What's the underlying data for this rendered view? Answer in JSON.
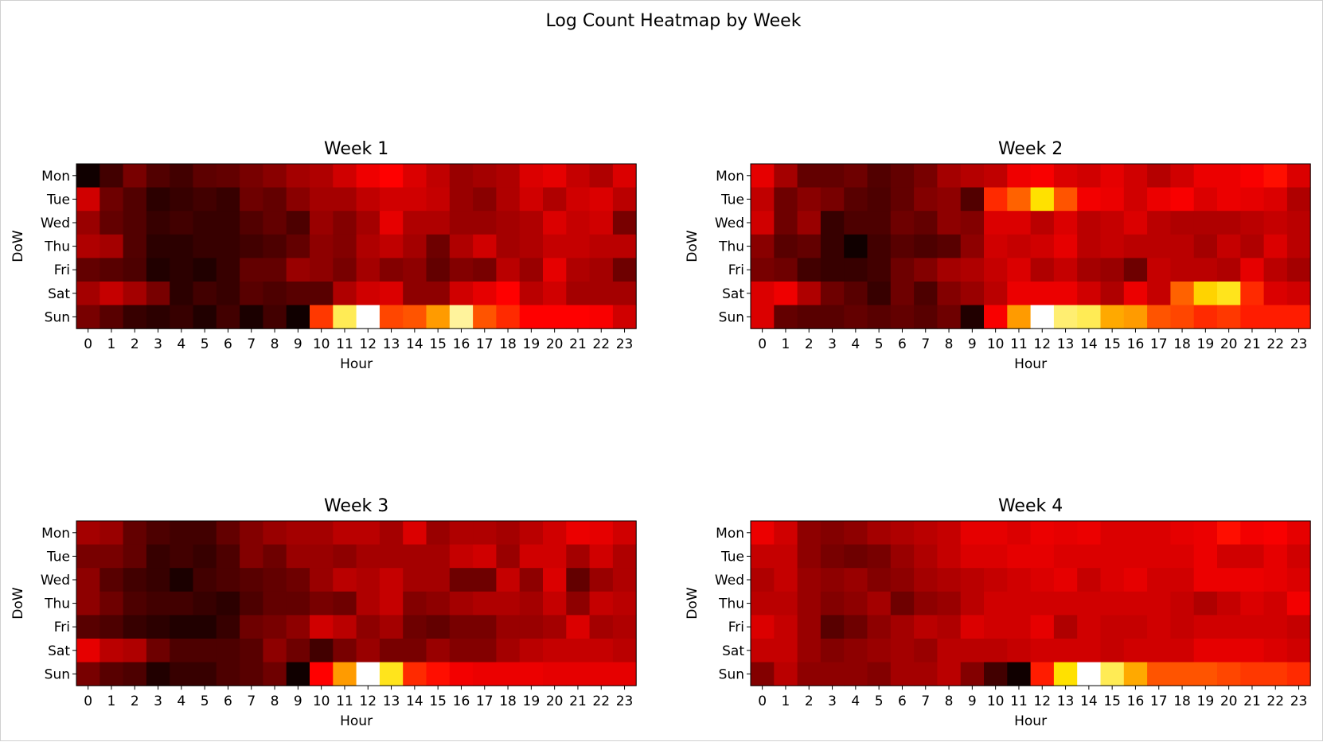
{
  "chart_data": {
    "type": "heatmap",
    "title": "Log Count Heatmap by Week",
    "colormap": "hot",
    "colormap_stops": [
      "#000000",
      "#e60000",
      "#ff0000",
      "#ffe100",
      "#ffffff"
    ],
    "x_ticks": [
      "0",
      "1",
      "2",
      "3",
      "4",
      "5",
      "6",
      "7",
      "8",
      "9",
      "10",
      "11",
      "12",
      "13",
      "14",
      "15",
      "16",
      "17",
      "18",
      "19",
      "20",
      "21",
      "22",
      "23"
    ],
    "y_ticks": [
      "Mon",
      "Tue",
      "Wed",
      "Thu",
      "Fri",
      "Sat",
      "Sun"
    ],
    "xlabel": "Hour",
    "ylabel": "DoW",
    "value_range": [
      0,
      1
    ],
    "panels": [
      {
        "title": "Week 1",
        "values": [
          [
            0.03,
            0.12,
            0.22,
            0.15,
            0.12,
            0.17,
            0.18,
            0.22,
            0.25,
            0.3,
            0.32,
            0.38,
            0.45,
            0.5,
            0.4,
            0.35,
            0.28,
            0.3,
            0.32,
            0.4,
            0.42,
            0.36,
            0.32,
            0.4
          ],
          [
            0.38,
            0.2,
            0.15,
            0.08,
            0.1,
            0.12,
            0.1,
            0.2,
            0.18,
            0.25,
            0.3,
            0.3,
            0.35,
            0.38,
            0.38,
            0.36,
            0.28,
            0.25,
            0.32,
            0.38,
            0.32,
            0.38,
            0.4,
            0.34
          ],
          [
            0.28,
            0.18,
            0.15,
            0.1,
            0.12,
            0.1,
            0.1,
            0.15,
            0.18,
            0.14,
            0.28,
            0.24,
            0.3,
            0.42,
            0.32,
            0.32,
            0.28,
            0.28,
            0.3,
            0.32,
            0.4,
            0.36,
            0.38,
            0.22
          ],
          [
            0.32,
            0.3,
            0.15,
            0.08,
            0.08,
            0.1,
            0.1,
            0.12,
            0.14,
            0.18,
            0.26,
            0.24,
            0.32,
            0.35,
            0.3,
            0.2,
            0.32,
            0.38,
            0.3,
            0.32,
            0.36,
            0.36,
            0.34,
            0.34
          ],
          [
            0.18,
            0.16,
            0.14,
            0.06,
            0.08,
            0.06,
            0.1,
            0.18,
            0.18,
            0.28,
            0.26,
            0.22,
            0.3,
            0.24,
            0.26,
            0.18,
            0.24,
            0.22,
            0.34,
            0.28,
            0.42,
            0.32,
            0.3,
            0.2
          ],
          [
            0.3,
            0.36,
            0.3,
            0.22,
            0.08,
            0.12,
            0.1,
            0.16,
            0.14,
            0.16,
            0.16,
            0.32,
            0.38,
            0.4,
            0.26,
            0.26,
            0.38,
            0.42,
            0.5,
            0.34,
            0.38,
            0.3,
            0.3,
            0.3
          ],
          [
            0.22,
            0.16,
            0.1,
            0.08,
            0.1,
            0.06,
            0.12,
            0.05,
            0.12,
            0.03,
            0.58,
            0.88,
            1.0,
            0.6,
            0.62,
            0.72,
            0.93,
            0.62,
            0.56,
            0.5,
            0.5,
            0.5,
            0.48,
            0.38
          ]
        ]
      },
      {
        "title": "Week 2",
        "values": [
          [
            0.42,
            0.3,
            0.18,
            0.18,
            0.2,
            0.15,
            0.18,
            0.22,
            0.3,
            0.33,
            0.35,
            0.45,
            0.48,
            0.4,
            0.38,
            0.42,
            0.38,
            0.33,
            0.38,
            0.44,
            0.44,
            0.48,
            0.52,
            0.4
          ],
          [
            0.35,
            0.2,
            0.25,
            0.22,
            0.16,
            0.14,
            0.18,
            0.24,
            0.26,
            0.15,
            0.56,
            0.64,
            0.82,
            0.62,
            0.46,
            0.44,
            0.38,
            0.44,
            0.48,
            0.4,
            0.44,
            0.42,
            0.4,
            0.32
          ],
          [
            0.38,
            0.2,
            0.28,
            0.1,
            0.14,
            0.14,
            0.2,
            0.18,
            0.26,
            0.24,
            0.4,
            0.4,
            0.34,
            0.4,
            0.34,
            0.36,
            0.4,
            0.34,
            0.32,
            0.32,
            0.32,
            0.34,
            0.36,
            0.34
          ],
          [
            0.25,
            0.16,
            0.18,
            0.1,
            0.03,
            0.12,
            0.16,
            0.14,
            0.16,
            0.26,
            0.38,
            0.36,
            0.38,
            0.42,
            0.34,
            0.36,
            0.34,
            0.34,
            0.34,
            0.3,
            0.36,
            0.32,
            0.4,
            0.34
          ],
          [
            0.22,
            0.2,
            0.12,
            0.1,
            0.1,
            0.12,
            0.2,
            0.24,
            0.3,
            0.32,
            0.36,
            0.4,
            0.32,
            0.36,
            0.3,
            0.28,
            0.2,
            0.36,
            0.34,
            0.34,
            0.32,
            0.42,
            0.34,
            0.3
          ],
          [
            0.4,
            0.45,
            0.32,
            0.2,
            0.16,
            0.1,
            0.2,
            0.14,
            0.24,
            0.28,
            0.34,
            0.44,
            0.44,
            0.44,
            0.38,
            0.32,
            0.44,
            0.36,
            0.64,
            0.8,
            0.84,
            0.56,
            0.4,
            0.38
          ],
          [
            0.4,
            0.18,
            0.16,
            0.16,
            0.18,
            0.16,
            0.18,
            0.16,
            0.2,
            0.06,
            0.48,
            0.72,
            1.0,
            0.9,
            0.88,
            0.74,
            0.72,
            0.62,
            0.6,
            0.56,
            0.58,
            0.54,
            0.54,
            0.54
          ]
        ]
      },
      {
        "title": "Week 3",
        "values": [
          [
            0.3,
            0.28,
            0.18,
            0.14,
            0.12,
            0.12,
            0.18,
            0.24,
            0.28,
            0.3,
            0.3,
            0.34,
            0.34,
            0.3,
            0.4,
            0.28,
            0.32,
            0.32,
            0.3,
            0.34,
            0.38,
            0.44,
            0.42,
            0.38
          ],
          [
            0.22,
            0.22,
            0.18,
            0.1,
            0.12,
            0.1,
            0.14,
            0.24,
            0.2,
            0.28,
            0.28,
            0.26,
            0.3,
            0.3,
            0.3,
            0.3,
            0.36,
            0.38,
            0.28,
            0.38,
            0.38,
            0.3,
            0.38,
            0.32
          ],
          [
            0.26,
            0.16,
            0.12,
            0.1,
            0.05,
            0.12,
            0.14,
            0.16,
            0.18,
            0.2,
            0.28,
            0.34,
            0.32,
            0.36,
            0.3,
            0.3,
            0.2,
            0.2,
            0.36,
            0.26,
            0.4,
            0.18,
            0.28,
            0.32
          ],
          [
            0.26,
            0.2,
            0.14,
            0.12,
            0.12,
            0.1,
            0.08,
            0.14,
            0.18,
            0.18,
            0.22,
            0.2,
            0.32,
            0.36,
            0.24,
            0.26,
            0.3,
            0.32,
            0.32,
            0.3,
            0.36,
            0.26,
            0.36,
            0.34
          ],
          [
            0.16,
            0.14,
            0.1,
            0.08,
            0.06,
            0.06,
            0.1,
            0.2,
            0.22,
            0.26,
            0.38,
            0.34,
            0.26,
            0.3,
            0.2,
            0.18,
            0.22,
            0.22,
            0.28,
            0.28,
            0.3,
            0.4,
            0.3,
            0.32
          ],
          [
            0.42,
            0.34,
            0.32,
            0.2,
            0.14,
            0.14,
            0.14,
            0.16,
            0.26,
            0.2,
            0.12,
            0.22,
            0.28,
            0.22,
            0.22,
            0.28,
            0.24,
            0.24,
            0.3,
            0.34,
            0.36,
            0.36,
            0.36,
            0.34
          ],
          [
            0.22,
            0.16,
            0.14,
            0.06,
            0.1,
            0.1,
            0.14,
            0.16,
            0.2,
            0.03,
            0.5,
            0.72,
            1.0,
            0.84,
            0.56,
            0.52,
            0.46,
            0.44,
            0.44,
            0.44,
            0.42,
            0.42,
            0.42,
            0.42
          ]
        ]
      },
      {
        "title": "Week 4",
        "values": [
          [
            0.44,
            0.38,
            0.26,
            0.24,
            0.26,
            0.3,
            0.32,
            0.34,
            0.36,
            0.42,
            0.42,
            0.4,
            0.44,
            0.42,
            0.44,
            0.4,
            0.4,
            0.4,
            0.42,
            0.44,
            0.52,
            0.46,
            0.48,
            0.42
          ],
          [
            0.36,
            0.36,
            0.26,
            0.22,
            0.2,
            0.22,
            0.28,
            0.32,
            0.36,
            0.4,
            0.4,
            0.42,
            0.42,
            0.4,
            0.4,
            0.4,
            0.4,
            0.4,
            0.4,
            0.44,
            0.38,
            0.38,
            0.42,
            0.38
          ],
          [
            0.32,
            0.36,
            0.28,
            0.26,
            0.28,
            0.24,
            0.26,
            0.3,
            0.32,
            0.34,
            0.36,
            0.38,
            0.4,
            0.42,
            0.36,
            0.4,
            0.42,
            0.38,
            0.38,
            0.44,
            0.44,
            0.44,
            0.42,
            0.4
          ],
          [
            0.34,
            0.34,
            0.28,
            0.24,
            0.26,
            0.3,
            0.2,
            0.26,
            0.28,
            0.34,
            0.38,
            0.38,
            0.38,
            0.38,
            0.38,
            0.38,
            0.38,
            0.38,
            0.36,
            0.32,
            0.36,
            0.4,
            0.38,
            0.46
          ],
          [
            0.4,
            0.36,
            0.28,
            0.16,
            0.2,
            0.26,
            0.3,
            0.34,
            0.32,
            0.4,
            0.38,
            0.38,
            0.42,
            0.32,
            0.38,
            0.36,
            0.36,
            0.38,
            0.36,
            0.38,
            0.38,
            0.38,
            0.38,
            0.36
          ],
          [
            0.36,
            0.36,
            0.28,
            0.24,
            0.26,
            0.28,
            0.3,
            0.28,
            0.34,
            0.34,
            0.34,
            0.36,
            0.38,
            0.38,
            0.38,
            0.36,
            0.38,
            0.38,
            0.38,
            0.42,
            0.42,
            0.42,
            0.4,
            0.38
          ],
          [
            0.24,
            0.34,
            0.26,
            0.26,
            0.26,
            0.24,
            0.3,
            0.3,
            0.34,
            0.24,
            0.12,
            0.03,
            0.54,
            0.82,
            1.0,
            0.88,
            0.74,
            0.62,
            0.62,
            0.62,
            0.6,
            0.58,
            0.58,
            0.56
          ]
        ]
      }
    ]
  }
}
